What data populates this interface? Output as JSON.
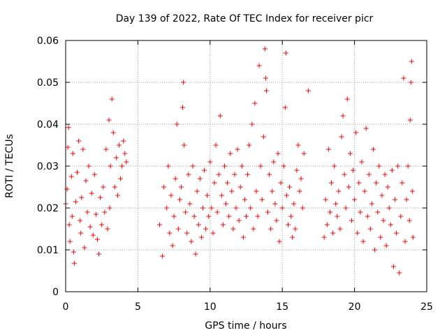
{
  "chart_data": {
    "type": "scatter",
    "title": "Day 139 of 2022, Rate Of TEC Index for receiver picr",
    "xlabel": "GPS time / hours",
    "ylabel": "ROTI / TECUs",
    "xlim": [
      0,
      25
    ],
    "ylim": [
      0,
      0.06
    ],
    "x_ticks": [
      0,
      5,
      10,
      15,
      20,
      25
    ],
    "x_tick_labels": [
      "0",
      "5",
      "10",
      "15",
      "20",
      "25"
    ],
    "y_ticks": [
      0,
      0.01,
      0.02,
      0.03,
      0.04,
      0.05,
      0.06
    ],
    "y_tick_labels": [
      "0",
      "0.01",
      "0.02",
      "0.03",
      "0.04",
      "0.05",
      "0.06"
    ],
    "grid": true,
    "marker": "+",
    "marker_color": "#ff0000",
    "series": [
      {
        "name": "ROTI",
        "points": [
          [
            0.0,
            0.021
          ],
          [
            0.1,
            0.0245
          ],
          [
            0.15,
            0.0345
          ],
          [
            0.2,
            0.0392
          ],
          [
            0.25,
            0.016
          ],
          [
            0.3,
            0.012
          ],
          [
            0.4,
            0.0275
          ],
          [
            0.45,
            0.018
          ],
          [
            0.5,
            0.033
          ],
          [
            0.55,
            0.0095
          ],
          [
            0.6,
            0.0068
          ],
          [
            0.7,
            0.0215
          ],
          [
            0.8,
            0.0285
          ],
          [
            0.9,
            0.036
          ],
          [
            1.0,
            0.017
          ],
          [
            1.05,
            0.014
          ],
          [
            1.1,
            0.0225
          ],
          [
            1.2,
            0.034
          ],
          [
            1.3,
            0.0105
          ],
          [
            1.4,
            0.0265
          ],
          [
            1.5,
            0.019
          ],
          [
            1.6,
            0.03
          ],
          [
            1.7,
            0.0155
          ],
          [
            1.8,
            0.0235
          ],
          [
            1.9,
            0.0135
          ],
          [
            2.0,
            0.028
          ],
          [
            2.1,
            0.0185
          ],
          [
            2.2,
            0.0125
          ],
          [
            2.3,
            0.009
          ],
          [
            2.4,
            0.0225
          ],
          [
            2.5,
            0.016
          ],
          [
            2.6,
            0.025
          ],
          [
            2.7,
            0.019
          ],
          [
            2.8,
            0.034
          ],
          [
            2.9,
            0.015
          ],
          [
            3.0,
            0.041
          ],
          [
            3.05,
            0.02
          ],
          [
            3.1,
            0.03
          ],
          [
            3.2,
            0.046
          ],
          [
            3.3,
            0.038
          ],
          [
            3.4,
            0.025
          ],
          [
            3.5,
            0.032
          ],
          [
            3.6,
            0.023
          ],
          [
            3.7,
            0.035
          ],
          [
            3.8,
            0.027
          ],
          [
            3.9,
            0.03
          ],
          [
            4.0,
            0.036
          ],
          [
            4.1,
            0.033
          ],
          [
            4.2,
            0.031
          ],
          [
            6.5,
            0.016
          ],
          [
            6.7,
            0.0085
          ],
          [
            6.8,
            0.025
          ],
          [
            7.0,
            0.02
          ],
          [
            7.1,
            0.03
          ],
          [
            7.2,
            0.014
          ],
          [
            7.3,
            0.023
          ],
          [
            7.4,
            0.011
          ],
          [
            7.5,
            0.018
          ],
          [
            7.6,
            0.027
          ],
          [
            7.7,
            0.04
          ],
          [
            7.8,
            0.015
          ],
          [
            7.9,
            0.022
          ],
          [
            8.0,
            0.025
          ],
          [
            8.1,
            0.044
          ],
          [
            8.15,
            0.05
          ],
          [
            8.2,
            0.035
          ],
          [
            8.3,
            0.019
          ],
          [
            8.4,
            0.014
          ],
          [
            8.5,
            0.028
          ],
          [
            8.6,
            0.021
          ],
          [
            8.7,
            0.012
          ],
          [
            8.8,
            0.03
          ],
          [
            8.9,
            0.018
          ],
          [
            9.0,
            0.009
          ],
          [
            9.1,
            0.024
          ],
          [
            9.2,
            0.016
          ],
          [
            9.3,
            0.027
          ],
          [
            9.4,
            0.013
          ],
          [
            9.5,
            0.02
          ],
          [
            9.6,
            0.029
          ],
          [
            9.7,
            0.015
          ],
          [
            9.8,
            0.023
          ],
          [
            9.9,
            0.018
          ],
          [
            10.0,
            0.031
          ],
          [
            10.1,
            0.02
          ],
          [
            10.2,
            0.014
          ],
          [
            10.3,
            0.026
          ],
          [
            10.4,
            0.035
          ],
          [
            10.5,
            0.019
          ],
          [
            10.6,
            0.028
          ],
          [
            10.7,
            0.042
          ],
          [
            10.8,
            0.023
          ],
          [
            10.9,
            0.016
          ],
          [
            11.0,
            0.03
          ],
          [
            11.1,
            0.021
          ],
          [
            11.2,
            0.026
          ],
          [
            11.3,
            0.018
          ],
          [
            11.4,
            0.033
          ],
          [
            11.5,
            0.024
          ],
          [
            11.6,
            0.015
          ],
          [
            11.7,
            0.028
          ],
          [
            11.8,
            0.02
          ],
          [
            11.9,
            0.034
          ],
          [
            12.0,
            0.017
          ],
          [
            12.1,
            0.025
          ],
          [
            12.2,
            0.03
          ],
          [
            12.3,
            0.013
          ],
          [
            12.4,
            0.022
          ],
          [
            12.5,
            0.018
          ],
          [
            12.6,
            0.028
          ],
          [
            12.7,
            0.035
          ],
          [
            12.8,
            0.02
          ],
          [
            12.9,
            0.04
          ],
          [
            13.0,
            0.015
          ],
          [
            13.1,
            0.045
          ],
          [
            13.2,
            0.024
          ],
          [
            13.3,
            0.018
          ],
          [
            13.4,
            0.054
          ],
          [
            13.5,
            0.03
          ],
          [
            13.6,
            0.022
          ],
          [
            13.7,
            0.037
          ],
          [
            13.8,
            0.058
          ],
          [
            13.85,
            0.051
          ],
          [
            13.9,
            0.048
          ],
          [
            14.0,
            0.019
          ],
          [
            14.1,
            0.028
          ],
          [
            14.2,
            0.015
          ],
          [
            14.3,
            0.024
          ],
          [
            14.4,
            0.031
          ],
          [
            14.5,
            0.021
          ],
          [
            14.6,
            0.017
          ],
          [
            14.7,
            0.033
          ],
          [
            14.8,
            0.012
          ],
          [
            14.9,
            0.026
          ],
          [
            15.0,
            0.02
          ],
          [
            15.1,
            0.03
          ],
          [
            15.2,
            0.044
          ],
          [
            15.25,
            0.057
          ],
          [
            15.3,
            0.023
          ],
          [
            15.4,
            0.016
          ],
          [
            15.5,
            0.025
          ],
          [
            15.6,
            0.018
          ],
          [
            15.7,
            0.013
          ],
          [
            15.8,
            0.021
          ],
          [
            15.9,
            0.015
          ],
          [
            16.0,
            0.029
          ],
          [
            16.1,
            0.035
          ],
          [
            16.2,
            0.024
          ],
          [
            16.3,
            0.027
          ],
          [
            16.4,
            0.02
          ],
          [
            16.5,
            0.033
          ],
          [
            16.8,
            0.048
          ],
          [
            17.9,
            0.013
          ],
          [
            18.0,
            0.022
          ],
          [
            18.1,
            0.016
          ],
          [
            18.2,
            0.034
          ],
          [
            18.3,
            0.019
          ],
          [
            18.4,
            0.026
          ],
          [
            18.5,
            0.014
          ],
          [
            18.6,
            0.03
          ],
          [
            18.7,
            0.021
          ],
          [
            18.8,
            0.018
          ],
          [
            18.9,
            0.024
          ],
          [
            19.0,
            0.015
          ],
          [
            19.1,
            0.037
          ],
          [
            19.2,
            0.042
          ],
          [
            19.3,
            0.028
          ],
          [
            19.4,
            0.02
          ],
          [
            19.5,
            0.046
          ],
          [
            19.6,
            0.025
          ],
          [
            19.7,
            0.033
          ],
          [
            19.8,
            0.017
          ],
          [
            19.9,
            0.029
          ],
          [
            20.0,
            0.022
          ],
          [
            20.1,
            0.038
          ],
          [
            20.2,
            0.014
          ],
          [
            20.3,
            0.026
          ],
          [
            20.4,
            0.019
          ],
          [
            20.5,
            0.031
          ],
          [
            20.6,
            0.012
          ],
          [
            20.7,
            0.024
          ],
          [
            20.8,
            0.039
          ],
          [
            20.9,
            0.018
          ],
          [
            21.0,
            0.028
          ],
          [
            21.1,
            0.015
          ],
          [
            21.2,
            0.021
          ],
          [
            21.3,
            0.034
          ],
          [
            21.4,
            0.01
          ],
          [
            21.5,
            0.026
          ],
          [
            21.6,
            0.019
          ],
          [
            21.7,
            0.03
          ],
          [
            21.8,
            0.013
          ],
          [
            21.9,
            0.023
          ],
          [
            22.0,
            0.017
          ],
          [
            22.1,
            0.028
          ],
          [
            22.2,
            0.011
          ],
          [
            22.3,
            0.025
          ],
          [
            22.4,
            0.02
          ],
          [
            22.5,
            0.016
          ],
          [
            22.6,
            0.029
          ],
          [
            22.7,
            0.006
          ],
          [
            22.8,
            0.022
          ],
          [
            22.9,
            0.014
          ],
          [
            23.0,
            0.03
          ],
          [
            23.1,
            0.0045
          ],
          [
            23.2,
            0.018
          ],
          [
            23.3,
            0.026
          ],
          [
            23.4,
            0.051
          ],
          [
            23.5,
            0.012
          ],
          [
            23.6,
            0.022
          ],
          [
            23.7,
            0.03
          ],
          [
            23.8,
            0.017
          ],
          [
            23.85,
            0.041
          ],
          [
            23.9,
            0.05
          ],
          [
            23.95,
            0.055
          ],
          [
            24.0,
            0.024
          ],
          [
            24.05,
            0.013
          ]
        ]
      }
    ]
  }
}
